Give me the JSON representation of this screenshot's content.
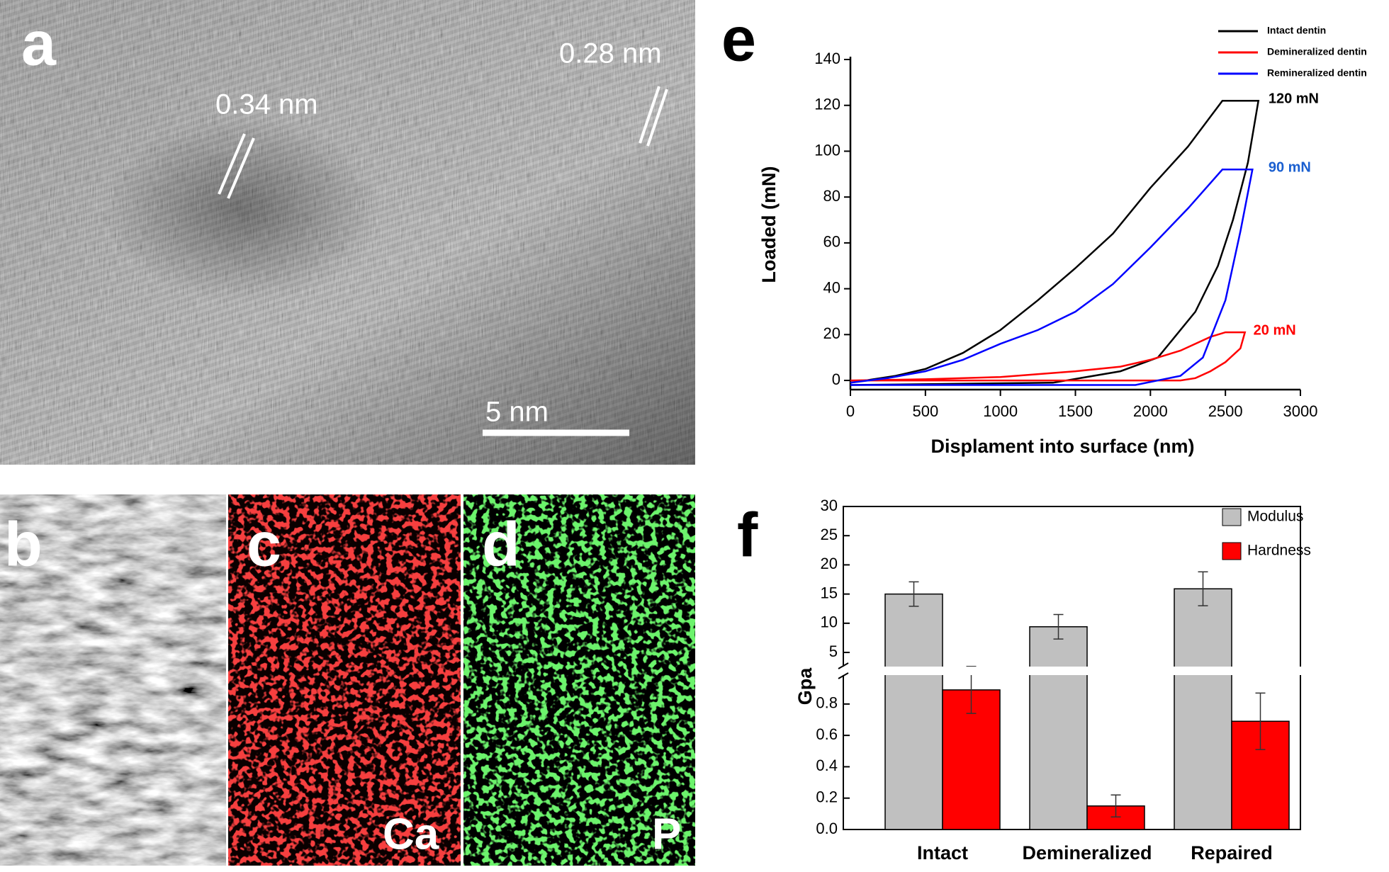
{
  "panels": {
    "a": {
      "letter": "a",
      "spacings": [
        "0.34 nm",
        "0.28 nm"
      ],
      "scale_bar": "5 nm"
    },
    "b": {
      "letter": "b"
    },
    "c": {
      "letter": "c",
      "element": "Ca"
    },
    "d": {
      "letter": "d",
      "element": "P"
    },
    "e": {
      "letter": "e"
    },
    "f": {
      "letter": "f"
    }
  },
  "chart_data": [
    {
      "type": "line",
      "x_label": "Displament into surface (nm)",
      "y_label": "Loaded (mN)",
      "xlim": [
        0,
        3000
      ],
      "ylim": [
        -4,
        140
      ],
      "xticks": [
        0,
        500,
        1000,
        1500,
        2000,
        2500,
        3000
      ],
      "yticks": [
        0,
        20,
        40,
        60,
        80,
        100,
        120,
        140
      ],
      "legend": "top-right",
      "series": [
        {
          "name": "Intact dentin",
          "color": "#000000",
          "x": [
            0,
            300,
            500,
            750,
            1000,
            1250,
            1500,
            1750,
            2000,
            2250,
            2480,
            2720,
            2650,
            2550,
            2450,
            2300,
            2150,
            2050,
            1800,
            1350,
            0
          ],
          "values": [
            -1,
            2,
            5,
            12,
            22,
            35,
            49,
            64,
            84,
            102,
            122,
            122,
            95,
            70,
            50,
            30,
            18,
            10,
            4,
            -1,
            -2
          ]
        },
        {
          "name": "Demineralized dentin",
          "color": "#ff0000",
          "x": [
            0,
            500,
            1000,
            1500,
            1800,
            2000,
            2200,
            2400,
            2500,
            2630,
            2600,
            2500,
            2400,
            2300,
            2200,
            0
          ],
          "values": [
            0,
            0.5,
            1.5,
            4,
            6,
            9,
            13,
            19,
            21,
            21,
            14,
            8,
            4,
            1,
            0,
            0
          ]
        },
        {
          "name": "Remineralized dentin",
          "color": "#0000ff",
          "x": [
            0,
            250,
            500,
            750,
            1000,
            1250,
            1500,
            1750,
            2000,
            2250,
            2480,
            2680,
            2600,
            2500,
            2350,
            2200,
            1900,
            0
          ],
          "values": [
            -1,
            1,
            4,
            9,
            16,
            22,
            30,
            42,
            58,
            75,
            92,
            92,
            65,
            35,
            10,
            2,
            -2,
            -2
          ]
        }
      ],
      "annotations": [
        {
          "text": "120 mN",
          "x": 2730,
          "y": 122,
          "color": "#000000"
        },
        {
          "text": "90 mN",
          "x": 2730,
          "y": 92,
          "color": "#1a5fd0"
        },
        {
          "text": "20 mN",
          "x": 2630,
          "y": 21,
          "color": "#ff0000"
        }
      ]
    },
    {
      "type": "broken-bar",
      "y_label": "Gpa",
      "categories": [
        "Intact",
        "Demineralized",
        "Repaired"
      ],
      "ylim_lower": [
        0,
        0.98
      ],
      "ylim_upper": [
        2.7,
        30
      ],
      "yticks_lower": [
        {
          "value": 0,
          "label": "0.0"
        },
        0.2,
        0.4,
        0.6,
        0.8
      ],
      "yticks_upper": [
        5,
        10,
        15,
        20,
        25,
        30
      ],
      "legend": "top-right",
      "series": [
        {
          "name": "Modulus",
          "color": "#c0c0c0",
          "axis": "upper",
          "values": [
            15,
            9.4,
            15.9
          ],
          "errors": [
            2.1,
            2.1,
            2.9
          ]
        },
        {
          "name": "Hardness",
          "color": "#ff0000",
          "axis": "lower",
          "values": [
            0.89,
            0.15,
            0.69
          ],
          "errors": [
            0.15,
            0.07,
            0.18
          ]
        }
      ]
    }
  ]
}
